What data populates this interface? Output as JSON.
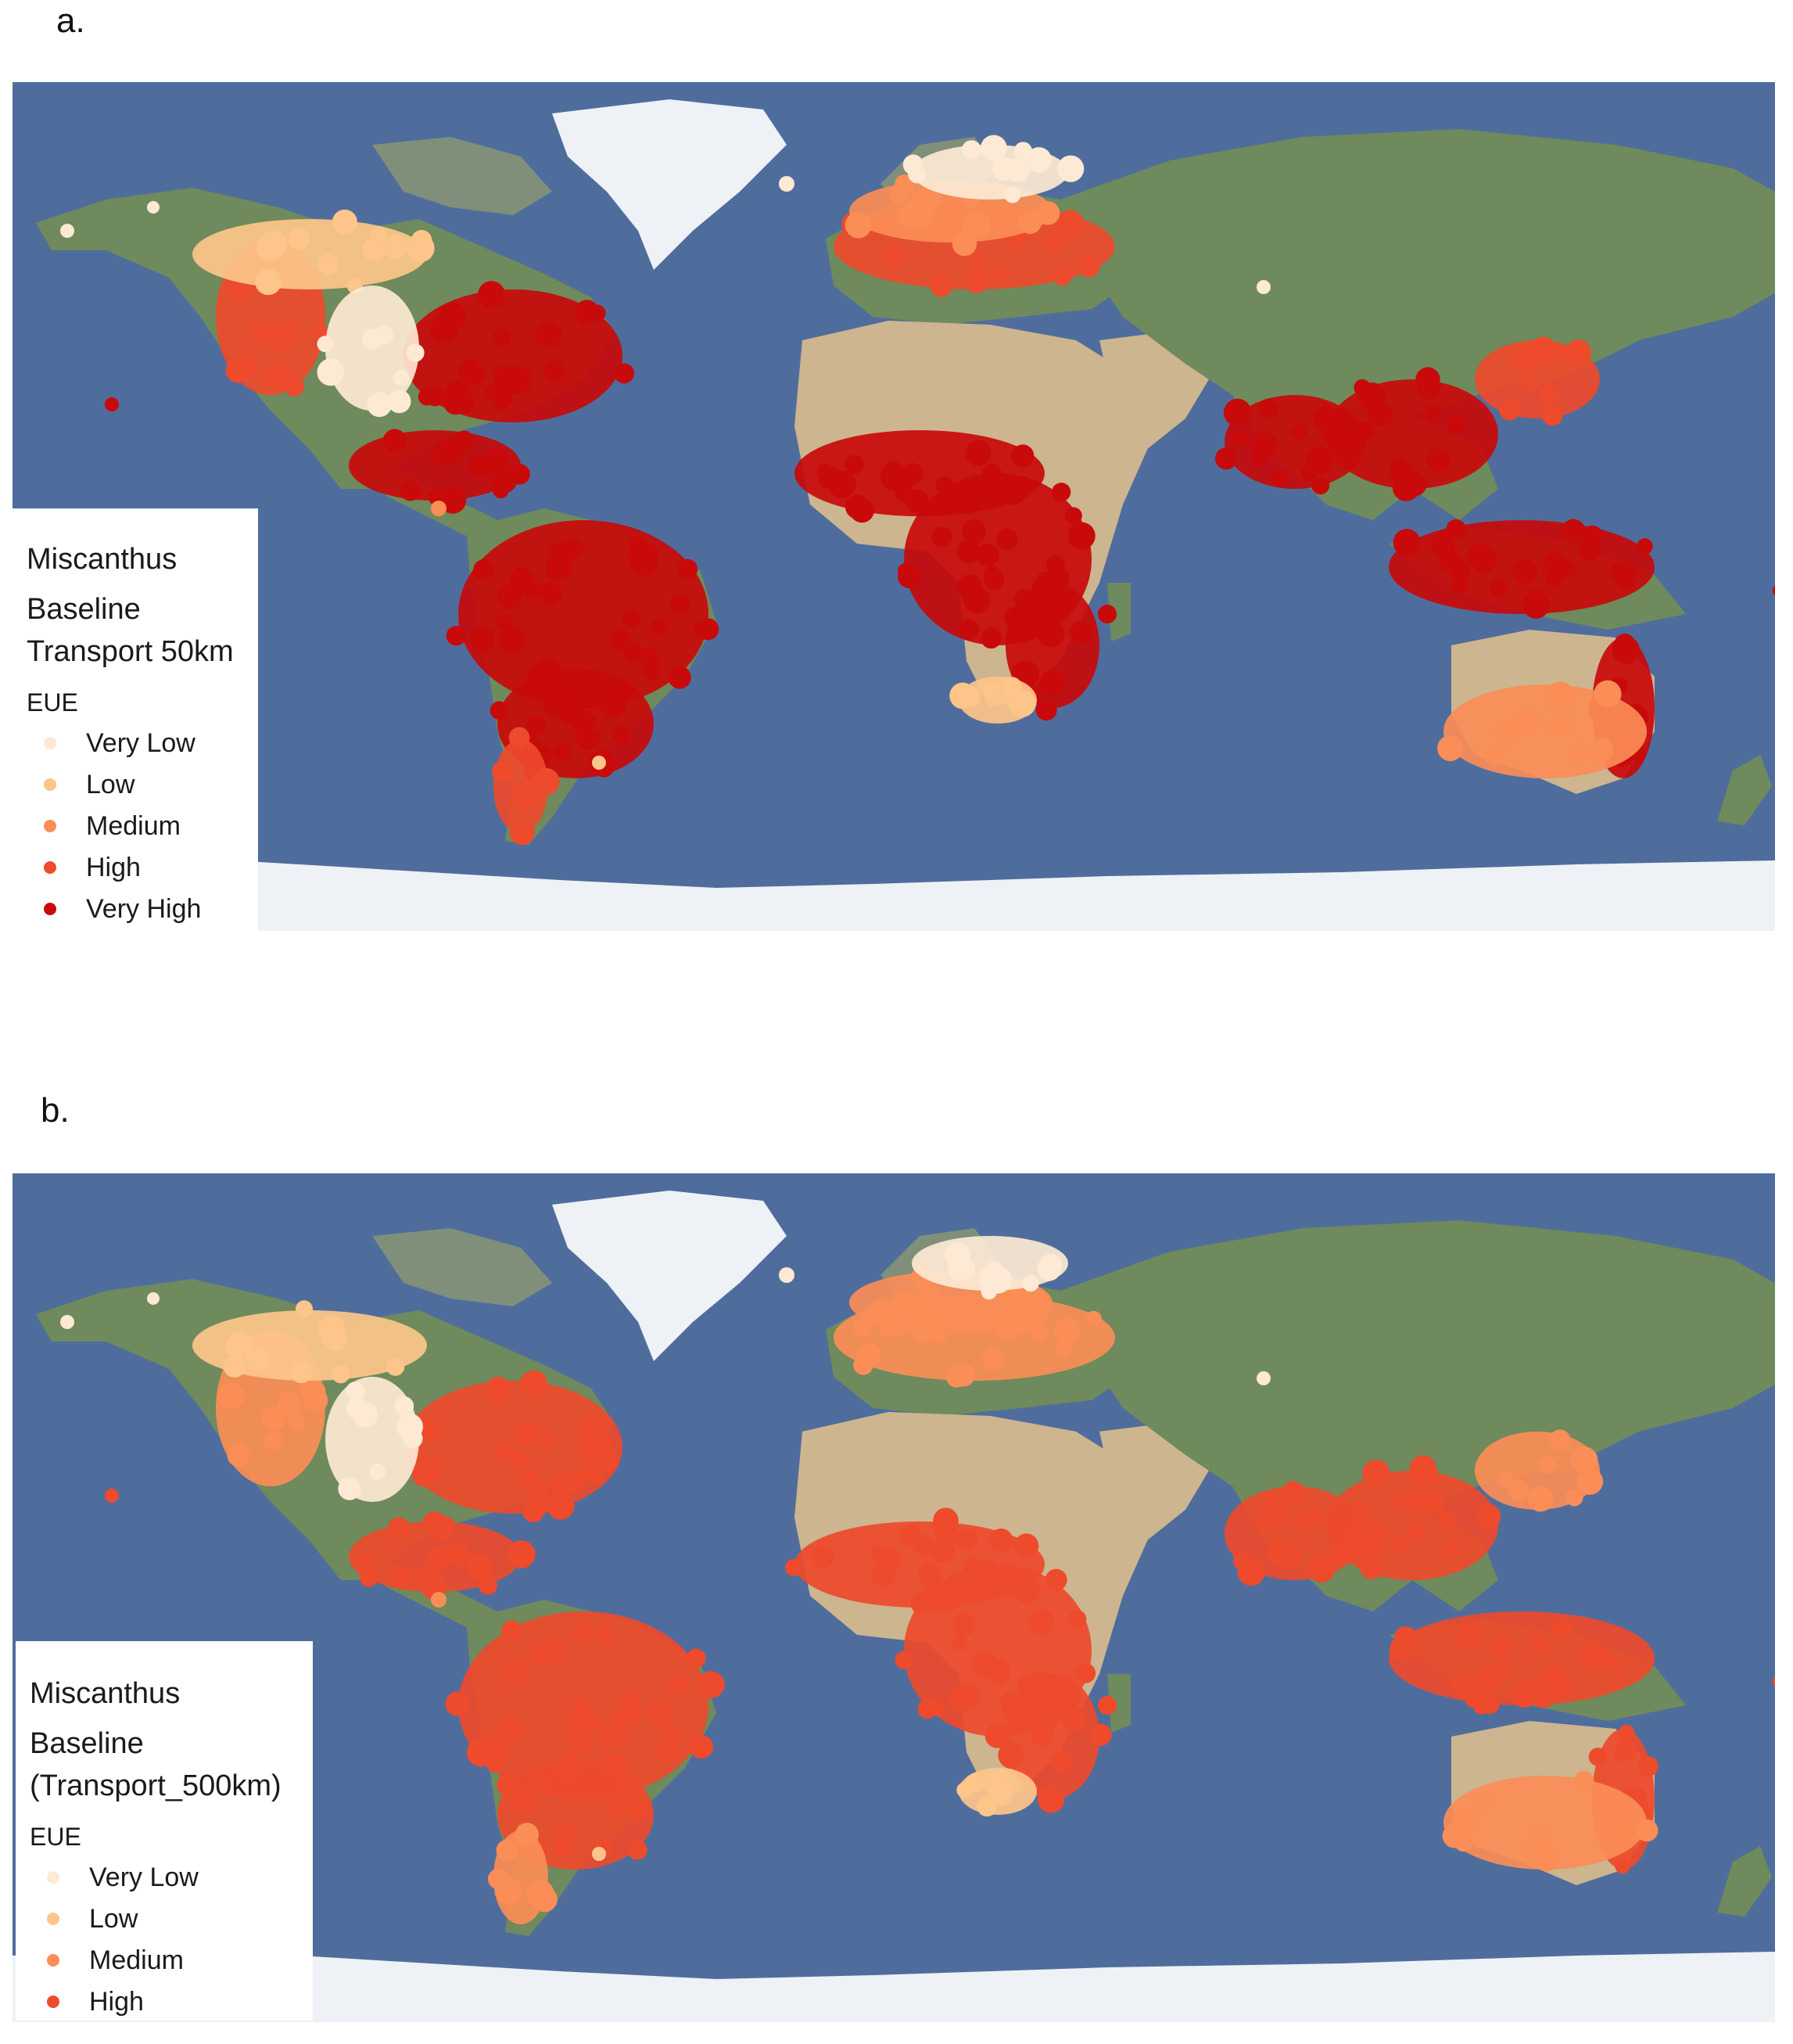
{
  "colors": {
    "very_low": "#fde9d4",
    "low": "#fdc58a",
    "medium": "#fb8d57",
    "high": "#ee4a2c",
    "very_high": "#c80a0a",
    "ocean": "#4f6d9c",
    "land": "#6f8a5c",
    "desert": "#cdb590",
    "ice": "#eef1f6"
  },
  "panels": [
    {
      "label": "a.",
      "legend": {
        "title_line1": "Miscanthus",
        "title_line2": "Baseline",
        "title_line3": "Transport 50km",
        "subtitle": "EUE",
        "items": [
          {
            "label": "Very Low",
            "color": "#fde9d4"
          },
          {
            "label": "Low",
            "color": "#fdc58a"
          },
          {
            "label": "Medium",
            "color": "#fb8d57"
          },
          {
            "label": "High",
            "color": "#ee4a2c"
          },
          {
            "label": "Very High",
            "color": "#c80a0a"
          }
        ]
      },
      "main_class_color": "#c80a0a"
    },
    {
      "label": "b.",
      "legend": {
        "title_line1": "Miscanthus",
        "title_line2": "Baseline",
        "title_line3": "(Transport_500km)",
        "subtitle": "EUE",
        "items": [
          {
            "label": "Very Low",
            "color": "#fde9d4"
          },
          {
            "label": "Low",
            "color": "#fdc58a"
          },
          {
            "label": "Medium",
            "color": "#fb8d57"
          },
          {
            "label": "High",
            "color": "#ee4a2c"
          }
        ]
      },
      "main_class_color": "#ee4a2c"
    }
  ]
}
